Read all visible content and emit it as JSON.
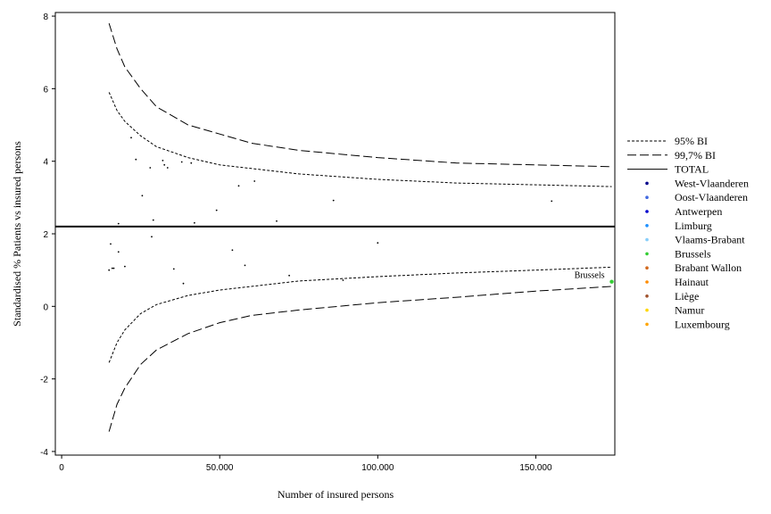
{
  "chart_data": {
    "type": "scatter",
    "xlabel": "Number of insured persons",
    "ylabel": "Standardised % Patients vs insured persons",
    "xlim": [
      -2000,
      175000
    ],
    "ylim": [
      -4.1,
      8.1
    ],
    "x_ticks": [
      0,
      50000,
      100000,
      150000
    ],
    "x_tick_labels": [
      "0",
      "50.000",
      "100.000",
      "150.000"
    ],
    "y_ticks": [
      -4,
      -2,
      0,
      2,
      4,
      6,
      8
    ],
    "y_tick_labels": [
      "-4",
      "-2",
      "0",
      "2",
      "4",
      "6",
      "8"
    ],
    "grid": false,
    "legend_position": "right",
    "total": 2.2,
    "funnel": {
      "x": [
        15000,
        17500,
        20000,
        25000,
        30000,
        40000,
        50000,
        60000,
        75000,
        100000,
        125000,
        150000,
        174000
      ],
      "ci95_upper": [
        5.9,
        5.4,
        5.1,
        4.7,
        4.4,
        4.1,
        3.9,
        3.8,
        3.65,
        3.5,
        3.4,
        3.35,
        3.3
      ],
      "ci95_lower": [
        -1.55,
        -1.0,
        -0.65,
        -0.2,
        0.05,
        0.3,
        0.45,
        0.55,
        0.7,
        0.82,
        0.92,
        1.0,
        1.08
      ],
      "ci997_upper": [
        7.8,
        7.1,
        6.6,
        6.0,
        5.5,
        5.0,
        4.75,
        4.5,
        4.3,
        4.1,
        3.95,
        3.9,
        3.85
      ],
      "ci997_lower": [
        -3.45,
        -2.7,
        -2.25,
        -1.6,
        -1.2,
        -0.75,
        -0.45,
        -0.25,
        -0.1,
        0.1,
        0.25,
        0.42,
        0.55
      ]
    },
    "points": [
      {
        "x": 15000,
        "y": 1.0
      },
      {
        "x": 15500,
        "y": 1.72
      },
      {
        "x": 16000,
        "y": 1.05
      },
      {
        "x": 16500,
        "y": 1.05
      },
      {
        "x": 18000,
        "y": 2.28
      },
      {
        "x": 18000,
        "y": 1.5
      },
      {
        "x": 20000,
        "y": 1.1
      },
      {
        "x": 22000,
        "y": 4.65
      },
      {
        "x": 23500,
        "y": 4.05
      },
      {
        "x": 25500,
        "y": 3.05
      },
      {
        "x": 28000,
        "y": 3.82
      },
      {
        "x": 28500,
        "y": 1.92
      },
      {
        "x": 29000,
        "y": 2.38
      },
      {
        "x": 32000,
        "y": 4.02
      },
      {
        "x": 32500,
        "y": 3.9
      },
      {
        "x": 33500,
        "y": 3.82
      },
      {
        "x": 35500,
        "y": 1.03
      },
      {
        "x": 38000,
        "y": 3.98
      },
      {
        "x": 38500,
        "y": 0.63
      },
      {
        "x": 41000,
        "y": 3.95
      },
      {
        "x": 42000,
        "y": 2.3
      },
      {
        "x": 49000,
        "y": 2.65
      },
      {
        "x": 54000,
        "y": 1.55
      },
      {
        "x": 56000,
        "y": 3.32
      },
      {
        "x": 58000,
        "y": 1.13
      },
      {
        "x": 61000,
        "y": 3.45
      },
      {
        "x": 68000,
        "y": 2.35
      },
      {
        "x": 72000,
        "y": 0.85
      },
      {
        "x": 86000,
        "y": 2.92
      },
      {
        "x": 89000,
        "y": 0.72
      },
      {
        "x": 100000,
        "y": 1.75
      },
      {
        "x": 155000,
        "y": 2.9
      },
      {
        "x": 174000,
        "y": 0.68,
        "region": "Brussels",
        "label": "Brussels"
      }
    ],
    "legend": [
      {
        "label": "95% BI",
        "kind": "line-dotted"
      },
      {
        "label": "99,7% BI",
        "kind": "line-dashed"
      },
      {
        "label": "TOTAL",
        "kind": "line-solid"
      },
      {
        "label": "West-Vlaanderen",
        "kind": "dot",
        "color": "#00008b"
      },
      {
        "label": "Oost-Vlaanderen",
        "kind": "dot",
        "color": "#4169e1"
      },
      {
        "label": "Antwerpen",
        "kind": "dot",
        "color": "#0000cd"
      },
      {
        "label": "Limburg",
        "kind": "dot",
        "color": "#1e90ff"
      },
      {
        "label": "Vlaams-Brabant",
        "kind": "dot",
        "color": "#87cefa"
      },
      {
        "label": "Brussels",
        "kind": "dot",
        "color": "#32cd32"
      },
      {
        "label": "Brabant Wallon",
        "kind": "dot",
        "color": "#d2691e"
      },
      {
        "label": "Hainaut",
        "kind": "dot",
        "color": "#ff8c00"
      },
      {
        "label": "Liège",
        "kind": "dot",
        "color": "#a0522d"
      },
      {
        "label": "Namur",
        "kind": "dot",
        "color": "#ffd700"
      },
      {
        "label": "Luxembourg",
        "kind": "dot",
        "color": "#ffa500"
      }
    ]
  }
}
